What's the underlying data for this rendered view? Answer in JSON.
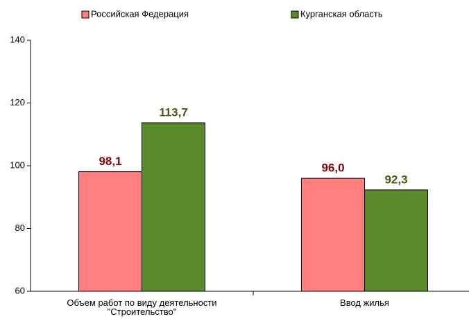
{
  "chart_data": {
    "type": "bar",
    "categories": [
      "Объем работ по виду деятельности \"Строительство\"",
      "Ввод жилья"
    ],
    "series": [
      {
        "name": "Российская Федерация",
        "color": "#ff7f7f",
        "label_color": "#8b0000",
        "values": [
          98.1,
          96.0
        ],
        "value_labels": [
          "98,1",
          "96,0"
        ]
      },
      {
        "name": "Курганская область",
        "color": "#5b8a2a",
        "label_color": "#4a5a10",
        "values": [
          113.7,
          92.3
        ],
        "value_labels": [
          "113,7",
          "92,3"
        ]
      }
    ],
    "ylim": [
      60,
      140
    ],
    "yticks": [
      60,
      80,
      100,
      120,
      140
    ],
    "grid": false,
    "legend": "top"
  }
}
